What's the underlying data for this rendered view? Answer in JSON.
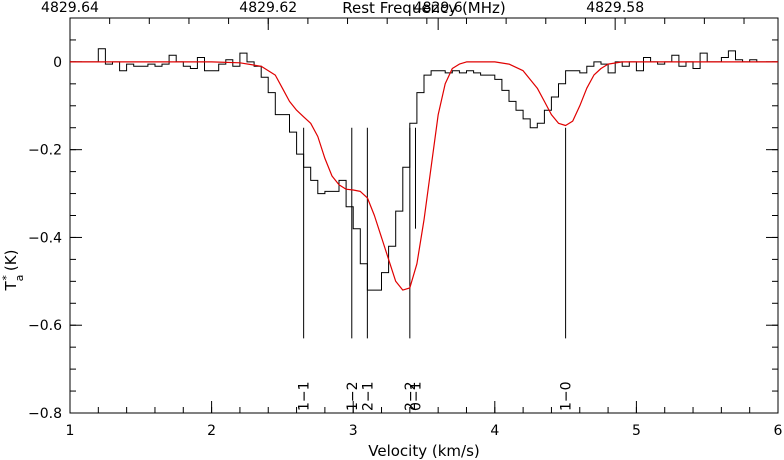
{
  "chart_data": {
    "type": "line",
    "xlabel": "Velocity (km/s)",
    "ylabel": "T",
    "ylabel_sub": "a",
    "ylabel_sup": "*",
    "ylabel_unit": "(K)",
    "top_axis_label": "Rest Frequency (MHz)",
    "xlim": [
      1,
      6
    ],
    "ylim": [
      -0.8,
      0.1
    ],
    "grid": false,
    "x_ticks": [
      1,
      2,
      3,
      4,
      5,
      6
    ],
    "x_tick_labels": [
      "1",
      "2",
      "3",
      "4",
      "5",
      "6"
    ],
    "y_ticks": [
      0,
      -0.2,
      -0.4,
      -0.6,
      -0.8
    ],
    "y_tick_labels": [
      "0",
      "−0.2",
      "−0.4",
      "−0.6",
      "−0.8"
    ],
    "top_ticks_velocity": [
      1.0,
      2.4,
      3.6,
      4.85
    ],
    "top_tick_labels": [
      "4829.64",
      "4829.62",
      "4829.6",
      "4829.58"
    ],
    "series": [
      {
        "kind": "observed-histogram",
        "color": "#000000",
        "x": [
          1.0,
          1.1,
          1.15,
          1.2,
          1.25,
          1.3,
          1.35,
          1.4,
          1.45,
          1.5,
          1.55,
          1.6,
          1.65,
          1.7,
          1.75,
          1.8,
          1.85,
          1.9,
          1.95,
          2.0,
          2.05,
          2.1,
          2.15,
          2.2,
          2.25,
          2.3,
          2.35,
          2.4,
          2.45,
          2.5,
          2.55,
          2.6,
          2.65,
          2.7,
          2.75,
          2.8,
          2.85,
          2.9,
          2.95,
          3.0,
          3.05,
          3.1,
          3.15,
          3.2,
          3.25,
          3.3,
          3.35,
          3.4,
          3.45,
          3.5,
          3.55,
          3.6,
          3.65,
          3.7,
          3.75,
          3.8,
          3.85,
          3.9,
          3.95,
          4.0,
          4.05,
          4.1,
          4.15,
          4.2,
          4.25,
          4.3,
          4.35,
          4.4,
          4.45,
          4.5,
          4.55,
          4.6,
          4.65,
          4.7,
          4.75,
          4.8,
          4.85,
          4.9,
          4.95,
          5.0,
          5.05,
          5.1,
          5.15,
          5.2,
          5.25,
          5.3,
          5.35,
          5.4,
          5.45,
          5.5,
          5.55,
          5.6,
          5.65,
          5.7,
          5.75,
          5.8,
          5.85,
          5.9,
          5.95,
          6.0
        ],
        "y": [
          0.0,
          0.0,
          0.0,
          0.03,
          -0.005,
          0.0,
          -0.02,
          -0.005,
          -0.01,
          -0.01,
          -0.005,
          -0.01,
          -0.005,
          0.015,
          0.0,
          -0.01,
          -0.015,
          0.01,
          -0.02,
          -0.02,
          -0.005,
          0.005,
          -0.01,
          0.02,
          0.0,
          -0.01,
          -0.035,
          -0.07,
          -0.12,
          -0.12,
          -0.16,
          -0.21,
          -0.24,
          -0.27,
          -0.3,
          -0.295,
          -0.295,
          -0.27,
          -0.33,
          -0.38,
          -0.46,
          -0.52,
          -0.52,
          -0.48,
          -0.42,
          -0.34,
          -0.24,
          -0.14,
          -0.07,
          -0.03,
          -0.02,
          -0.02,
          -0.025,
          -0.02,
          -0.025,
          -0.02,
          -0.025,
          -0.03,
          -0.03,
          -0.04,
          -0.065,
          -0.09,
          -0.11,
          -0.13,
          -0.15,
          -0.14,
          -0.11,
          -0.08,
          -0.05,
          -0.02,
          -0.02,
          -0.025,
          -0.01,
          0.0,
          -0.005,
          -0.025,
          0.0,
          -0.01,
          0.0,
          -0.02,
          0.01,
          0.0,
          -0.005,
          0.0,
          0.015,
          -0.01,
          0.0,
          -0.015,
          0.02,
          0.0,
          0.0,
          0.01,
          0.025,
          0.005,
          0.0,
          0.005,
          0.0,
          0.0,
          0.0,
          0.0
        ]
      },
      {
        "kind": "model-fit",
        "color": "#e00000",
        "x": [
          1.0,
          2.0,
          2.2,
          2.35,
          2.45,
          2.5,
          2.55,
          2.6,
          2.65,
          2.7,
          2.75,
          2.8,
          2.85,
          2.9,
          2.95,
          3.0,
          3.05,
          3.1,
          3.15,
          3.2,
          3.25,
          3.3,
          3.35,
          3.4,
          3.45,
          3.5,
          3.55,
          3.6,
          3.65,
          3.7,
          3.75,
          3.8,
          3.85,
          3.9,
          4.0,
          4.1,
          4.2,
          4.3,
          4.35,
          4.4,
          4.45,
          4.5,
          4.55,
          4.6,
          4.65,
          4.7,
          4.75,
          4.8,
          4.9,
          5.0,
          6.0
        ],
        "y": [
          0.0,
          0.0,
          -0.002,
          -0.01,
          -0.03,
          -0.06,
          -0.09,
          -0.11,
          -0.125,
          -0.14,
          -0.17,
          -0.22,
          -0.26,
          -0.28,
          -0.29,
          -0.292,
          -0.295,
          -0.31,
          -0.35,
          -0.4,
          -0.45,
          -0.5,
          -0.52,
          -0.515,
          -0.46,
          -0.36,
          -0.24,
          -0.12,
          -0.05,
          -0.015,
          -0.005,
          0.0,
          0.0,
          0.0,
          0.0,
          -0.005,
          -0.02,
          -0.06,
          -0.09,
          -0.12,
          -0.14,
          -0.145,
          -0.135,
          -0.1,
          -0.06,
          -0.03,
          -0.015,
          -0.005,
          0.0,
          0.0,
          0.0
        ]
      }
    ],
    "components": [
      {
        "label": "1−1",
        "velocity": 2.65,
        "strength": 0.63
      },
      {
        "label": "1−2",
        "velocity": 2.99,
        "strength": 0.63
      },
      {
        "label": "2−1",
        "velocity": 3.1,
        "strength": 0.63
      },
      {
        "label": "2−2",
        "velocity": 3.4,
        "strength": 0.63
      },
      {
        "label": "0−1",
        "velocity": 3.44,
        "strength": 0.38
      },
      {
        "label": "1−0",
        "velocity": 4.5,
        "strength": 0.63
      }
    ]
  }
}
